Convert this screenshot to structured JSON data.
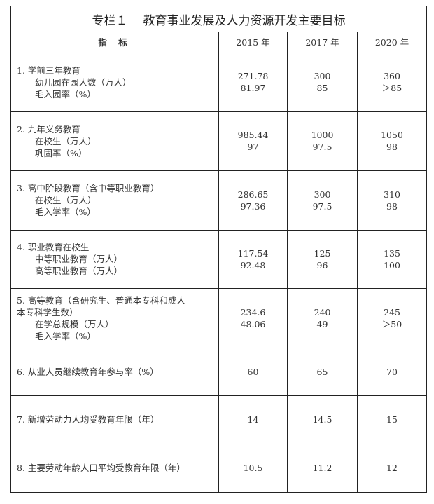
{
  "title": {
    "prefix": "专栏１",
    "text": "教育事业发展及人力资源开发主要目标"
  },
  "header": [
    "指 标",
    "2015 年",
    "2017 年",
    "2020 年"
  ],
  "rows": [
    {
      "lines": [
        "1. 学前三年教育",
        "幼儿园在园人数（万人）",
        "毛入园率（%）"
      ],
      "indent_from": 1,
      "v2015": [
        "271.78",
        "81.97"
      ],
      "v2017": [
        "300",
        "85"
      ],
      "v2020": [
        "360",
        "＞85"
      ]
    },
    {
      "lines": [
        "2. 九年义务教育",
        "在校生（万人）",
        "巩固率（%）"
      ],
      "indent_from": 1,
      "v2015": [
        "985.44",
        "97"
      ],
      "v2017": [
        "1000",
        "97.5"
      ],
      "v2020": [
        "1050",
        "98"
      ]
    },
    {
      "lines": [
        "3. 高中阶段教育（含中等职业教育）",
        "在校生（万人）",
        "毛入学率（%）"
      ],
      "indent_from": 1,
      "v2015": [
        "286.65",
        "97.36"
      ],
      "v2017": [
        "300",
        "97.5"
      ],
      "v2020": [
        "310",
        "98"
      ]
    },
    {
      "lines": [
        "4. 职业教育在校生",
        "中等职业教育（万人）",
        "高等职业教育（万人）"
      ],
      "indent_from": 1,
      "v2015": [
        "117.54",
        "92.48"
      ],
      "v2017": [
        "125",
        "96"
      ],
      "v2020": [
        "135",
        "100"
      ]
    },
    {
      "lines": [
        "5. 高等教育（含研究生、普通本专科和成人",
        "本专科学生数）",
        "在学总规模（万人）",
        "毛入学率（%）"
      ],
      "indent_from": 2,
      "v2015": [
        "234.6",
        "48.06"
      ],
      "v2017": [
        "240",
        "49"
      ],
      "v2020": [
        "245",
        "＞50"
      ]
    },
    {
      "lines": [
        "6. 从业人员继续教育年参与率（%）"
      ],
      "indent_from": 9,
      "v2015": [
        "60"
      ],
      "v2017": [
        "65"
      ],
      "v2020": [
        "70"
      ]
    },
    {
      "lines": [
        "7. 新增劳动力人均受教育年限（年）"
      ],
      "indent_from": 9,
      "v2015": [
        "14"
      ],
      "v2017": [
        "14.5"
      ],
      "v2020": [
        "15"
      ]
    },
    {
      "lines": [
        "8. 主要劳动年龄人口平均受教育年限（年）"
      ],
      "indent_from": 9,
      "v2015": [
        "10.5"
      ],
      "v2017": [
        "11.2"
      ],
      "v2020": [
        "12"
      ]
    }
  ]
}
